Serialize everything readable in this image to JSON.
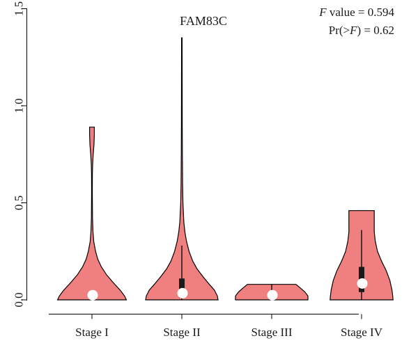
{
  "chart_data": {
    "type": "violin",
    "title": "FAM83C",
    "annotation": {
      "f_label": "F",
      "f_rest": " value = 0.594",
      "p_prefix": "Pr(>",
      "p_var": "F",
      "p_suffix": ") = 0.62"
    },
    "categories": [
      "Stage I",
      "Stage II",
      "Stage III",
      "Stage IV"
    ],
    "ylim": [
      -0.02,
      1.55
    ],
    "yticks": [
      0.0,
      0.5,
      1.0,
      1.5
    ],
    "ytick_labels": [
      "0.0",
      "0.5",
      "1.0",
      "1.5"
    ],
    "fill_color": "#F08080",
    "groups": [
      {
        "name": "Stage I",
        "max": 0.89,
        "median": 0.01,
        "q1": 0.0,
        "q3": 0.01,
        "whisker_low": 0.0,
        "whisker_high": 0.01,
        "density": [
          [
            0.0,
            0.95
          ],
          [
            0.02,
            0.9
          ],
          [
            0.05,
            0.78
          ],
          [
            0.09,
            0.58
          ],
          [
            0.13,
            0.4
          ],
          [
            0.17,
            0.26
          ],
          [
            0.21,
            0.16
          ],
          [
            0.25,
            0.1
          ],
          [
            0.3,
            0.05
          ],
          [
            0.35,
            0.028
          ],
          [
            0.42,
            0.015
          ],
          [
            0.55,
            0.01
          ],
          [
            0.65,
            0.012
          ],
          [
            0.7,
            0.02
          ],
          [
            0.75,
            0.035
          ],
          [
            0.8,
            0.055
          ],
          [
            0.85,
            0.065
          ],
          [
            0.89,
            0.065
          ]
        ]
      },
      {
        "name": "Stage II",
        "max": 1.35,
        "median": 0.02,
        "q1": 0.01,
        "q3": 0.11,
        "whisker_low": 0.0,
        "whisker_high": 0.28,
        "density": [
          [
            0.0,
            1.0
          ],
          [
            0.02,
            0.98
          ],
          [
            0.05,
            0.9
          ],
          [
            0.08,
            0.76
          ],
          [
            0.12,
            0.58
          ],
          [
            0.16,
            0.42
          ],
          [
            0.2,
            0.3
          ],
          [
            0.25,
            0.2
          ],
          [
            0.3,
            0.13
          ],
          [
            0.35,
            0.085
          ],
          [
            0.4,
            0.055
          ],
          [
            0.5,
            0.03
          ],
          [
            0.6,
            0.022
          ],
          [
            0.75,
            0.016
          ],
          [
            0.9,
            0.012
          ],
          [
            1.1,
            0.01
          ],
          [
            1.35,
            0.008
          ]
        ]
      },
      {
        "name": "Stage III",
        "max": 0.08,
        "median": 0.01,
        "q1": 0.0,
        "q3": 0.03,
        "whisker_low": 0.0,
        "whisker_high": 0.08,
        "density": [
          [
            0.0,
            1.0
          ],
          [
            0.02,
            1.0
          ],
          [
            0.04,
            0.92
          ],
          [
            0.06,
            0.8
          ],
          [
            0.08,
            0.67
          ]
        ]
      },
      {
        "name": "Stage IV",
        "max": 0.46,
        "median": 0.07,
        "q1": 0.04,
        "q3": 0.17,
        "whisker_low": 0.0,
        "whisker_high": 0.36,
        "density": [
          [
            0.0,
            0.87
          ],
          [
            0.02,
            0.86
          ],
          [
            0.05,
            0.84
          ],
          [
            0.1,
            0.78
          ],
          [
            0.15,
            0.68
          ],
          [
            0.2,
            0.55
          ],
          [
            0.25,
            0.44
          ],
          [
            0.3,
            0.38
          ],
          [
            0.35,
            0.35
          ],
          [
            0.4,
            0.35
          ],
          [
            0.46,
            0.35
          ]
        ]
      }
    ]
  }
}
